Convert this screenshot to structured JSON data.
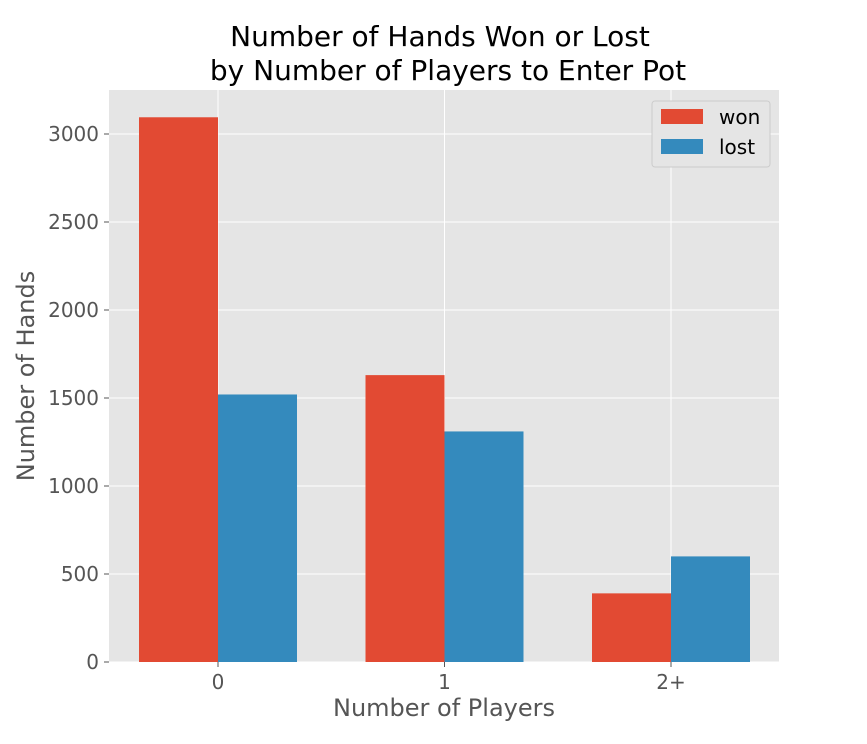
{
  "chart_data": {
    "type": "bar",
    "title_lines": [
      "Number of Hands Won or Lost",
      "by Number of Players to Enter Pot"
    ],
    "xlabel": "Number of Players",
    "ylabel": "Number of Hands",
    "categories": [
      "0",
      "1",
      "2+"
    ],
    "series": [
      {
        "name": "won",
        "values": [
          3095,
          1630,
          390
        ],
        "color": "#E24A33"
      },
      {
        "name": "lost",
        "values": [
          1520,
          1310,
          600
        ],
        "color": "#348ABD"
      }
    ],
    "ylim": [
      0,
      3250
    ],
    "yticks": [
      0,
      500,
      1000,
      1500,
      2000,
      2500,
      3000
    ],
    "grid": true,
    "legend_position": "top-right",
    "background_color": "#E5E5E5",
    "grid_color": "#FFFFFF"
  }
}
